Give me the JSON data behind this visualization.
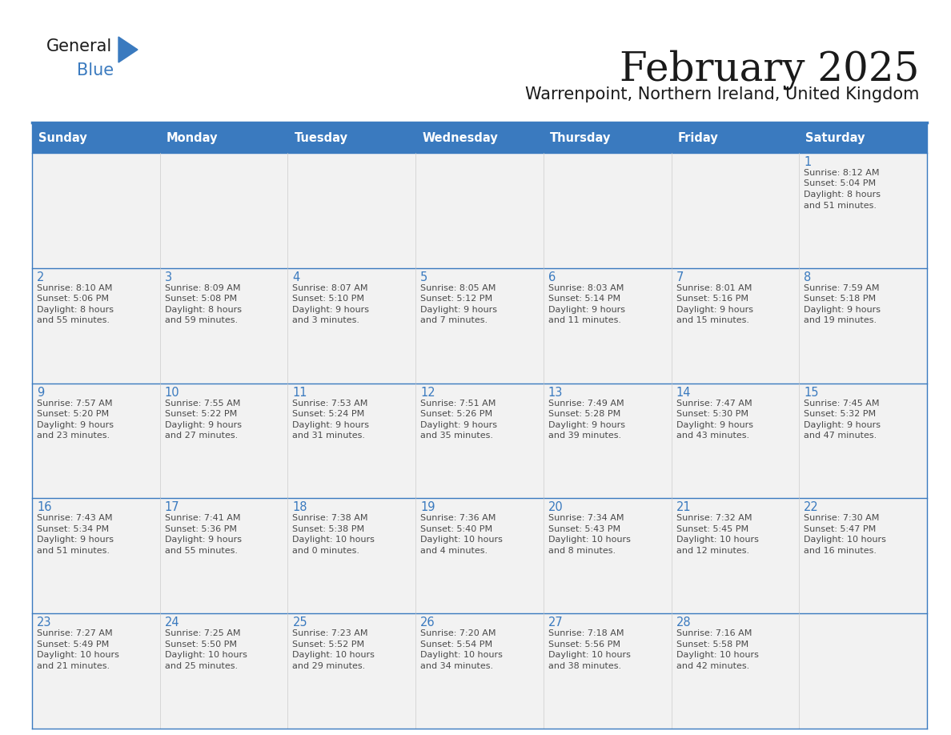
{
  "title": "February 2025",
  "subtitle": "Warrenpoint, Northern Ireland, United Kingdom",
  "header_color": "#3a7abf",
  "header_text_color": "#ffffff",
  "cell_bg_color": "#f2f2f2",
  "cell_text_color": "#4a4a4a",
  "day_number_color": "#3a7abf",
  "border_color": "#3a7abf",
  "days_of_week": [
    "Sunday",
    "Monday",
    "Tuesday",
    "Wednesday",
    "Thursday",
    "Friday",
    "Saturday"
  ],
  "calendar_data": [
    [
      null,
      null,
      null,
      null,
      null,
      null,
      {
        "day": 1,
        "sunrise": "8:12 AM",
        "sunset": "5:04 PM",
        "daylight_h": "8 hours",
        "daylight_m": "51 minutes."
      }
    ],
    [
      {
        "day": 2,
        "sunrise": "8:10 AM",
        "sunset": "5:06 PM",
        "daylight_h": "8 hours",
        "daylight_m": "55 minutes."
      },
      {
        "day": 3,
        "sunrise": "8:09 AM",
        "sunset": "5:08 PM",
        "daylight_h": "8 hours",
        "daylight_m": "59 minutes."
      },
      {
        "day": 4,
        "sunrise": "8:07 AM",
        "sunset": "5:10 PM",
        "daylight_h": "9 hours",
        "daylight_m": "3 minutes."
      },
      {
        "day": 5,
        "sunrise": "8:05 AM",
        "sunset": "5:12 PM",
        "daylight_h": "9 hours",
        "daylight_m": "7 minutes."
      },
      {
        "day": 6,
        "sunrise": "8:03 AM",
        "sunset": "5:14 PM",
        "daylight_h": "9 hours",
        "daylight_m": "11 minutes."
      },
      {
        "day": 7,
        "sunrise": "8:01 AM",
        "sunset": "5:16 PM",
        "daylight_h": "9 hours",
        "daylight_m": "15 minutes."
      },
      {
        "day": 8,
        "sunrise": "7:59 AM",
        "sunset": "5:18 PM",
        "daylight_h": "9 hours",
        "daylight_m": "19 minutes."
      }
    ],
    [
      {
        "day": 9,
        "sunrise": "7:57 AM",
        "sunset": "5:20 PM",
        "daylight_h": "9 hours",
        "daylight_m": "23 minutes."
      },
      {
        "day": 10,
        "sunrise": "7:55 AM",
        "sunset": "5:22 PM",
        "daylight_h": "9 hours",
        "daylight_m": "27 minutes."
      },
      {
        "day": 11,
        "sunrise": "7:53 AM",
        "sunset": "5:24 PM",
        "daylight_h": "9 hours",
        "daylight_m": "31 minutes."
      },
      {
        "day": 12,
        "sunrise": "7:51 AM",
        "sunset": "5:26 PM",
        "daylight_h": "9 hours",
        "daylight_m": "35 minutes."
      },
      {
        "day": 13,
        "sunrise": "7:49 AM",
        "sunset": "5:28 PM",
        "daylight_h": "9 hours",
        "daylight_m": "39 minutes."
      },
      {
        "day": 14,
        "sunrise": "7:47 AM",
        "sunset": "5:30 PM",
        "daylight_h": "9 hours",
        "daylight_m": "43 minutes."
      },
      {
        "day": 15,
        "sunrise": "7:45 AM",
        "sunset": "5:32 PM",
        "daylight_h": "9 hours",
        "daylight_m": "47 minutes."
      }
    ],
    [
      {
        "day": 16,
        "sunrise": "7:43 AM",
        "sunset": "5:34 PM",
        "daylight_h": "9 hours",
        "daylight_m": "51 minutes."
      },
      {
        "day": 17,
        "sunrise": "7:41 AM",
        "sunset": "5:36 PM",
        "daylight_h": "9 hours",
        "daylight_m": "55 minutes."
      },
      {
        "day": 18,
        "sunrise": "7:38 AM",
        "sunset": "5:38 PM",
        "daylight_h": "10 hours",
        "daylight_m": "0 minutes."
      },
      {
        "day": 19,
        "sunrise": "7:36 AM",
        "sunset": "5:40 PM",
        "daylight_h": "10 hours",
        "daylight_m": "4 minutes."
      },
      {
        "day": 20,
        "sunrise": "7:34 AM",
        "sunset": "5:43 PM",
        "daylight_h": "10 hours",
        "daylight_m": "8 minutes."
      },
      {
        "day": 21,
        "sunrise": "7:32 AM",
        "sunset": "5:45 PM",
        "daylight_h": "10 hours",
        "daylight_m": "12 minutes."
      },
      {
        "day": 22,
        "sunrise": "7:30 AM",
        "sunset": "5:47 PM",
        "daylight_h": "10 hours",
        "daylight_m": "16 minutes."
      }
    ],
    [
      {
        "day": 23,
        "sunrise": "7:27 AM",
        "sunset": "5:49 PM",
        "daylight_h": "10 hours",
        "daylight_m": "21 minutes."
      },
      {
        "day": 24,
        "sunrise": "7:25 AM",
        "sunset": "5:50 PM",
        "daylight_h": "10 hours",
        "daylight_m": "25 minutes."
      },
      {
        "day": 25,
        "sunrise": "7:23 AM",
        "sunset": "5:52 PM",
        "daylight_h": "10 hours",
        "daylight_m": "29 minutes."
      },
      {
        "day": 26,
        "sunrise": "7:20 AM",
        "sunset": "5:54 PM",
        "daylight_h": "10 hours",
        "daylight_m": "34 minutes."
      },
      {
        "day": 27,
        "sunrise": "7:18 AM",
        "sunset": "5:56 PM",
        "daylight_h": "10 hours",
        "daylight_m": "38 minutes."
      },
      {
        "day": 28,
        "sunrise": "7:16 AM",
        "sunset": "5:58 PM",
        "daylight_h": "10 hours",
        "daylight_m": "42 minutes."
      },
      null
    ]
  ]
}
